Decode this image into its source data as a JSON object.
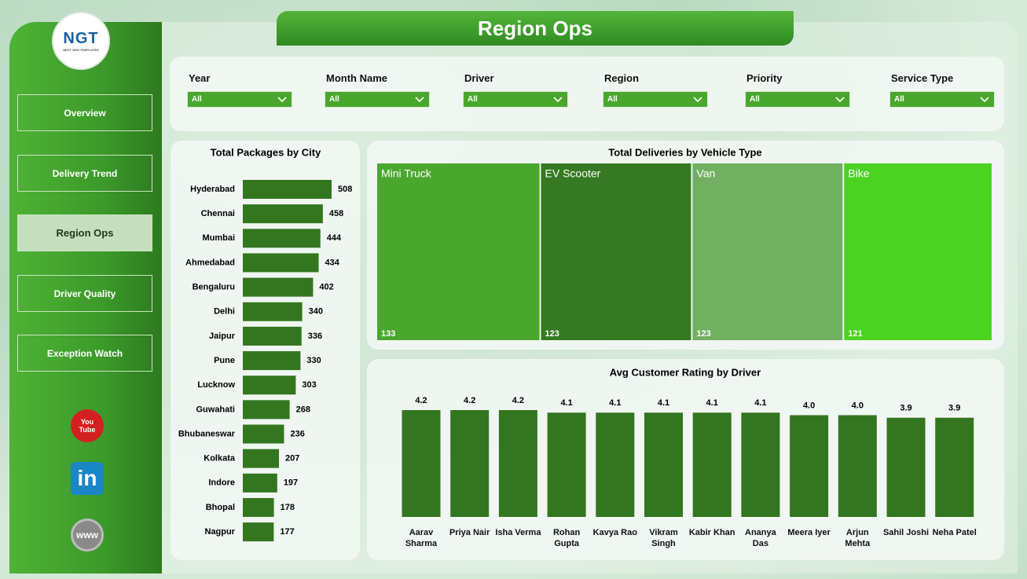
{
  "logo": {
    "name": "NGT",
    "tagline": "NEXT GEN TEMPLATES"
  },
  "nav": [
    "Overview",
    "Delivery Trend",
    "Region Ops",
    "Driver Quality",
    "Exception Watch"
  ],
  "social": [
    "You Tube",
    "in",
    "www"
  ],
  "title": "Region Ops",
  "filters": [
    {
      "label": "Year",
      "value": "All"
    },
    {
      "label": "Month Name",
      "value": "All"
    },
    {
      "label": "Driver",
      "value": "All"
    },
    {
      "label": "Region",
      "value": "All"
    },
    {
      "label": "Priority",
      "value": "All"
    },
    {
      "label": "Service Type",
      "value": "All"
    }
  ],
  "chart_data": [
    {
      "type": "hbar",
      "title": "Total Packages by City",
      "categories": [
        "Hyderabad",
        "Chennai",
        "Mumbai",
        "Ahmedabad",
        "Bengaluru",
        "Delhi",
        "Jaipur",
        "Pune",
        "Lucknow",
        "Guwahati",
        "Bhubaneswar",
        "Kolkata",
        "Indore",
        "Bhopal",
        "Nagpur"
      ],
      "values": [
        508,
        458,
        444,
        434,
        402,
        340,
        336,
        330,
        303,
        268,
        236,
        207,
        197,
        178,
        177
      ],
      "color": "#33761f"
    },
    {
      "type": "treemap",
      "title": "Total Deliveries by Vehicle Type",
      "categories": [
        "Mini Truck",
        "EV Scooter",
        "Van",
        "Bike"
      ],
      "values": [
        133,
        123,
        123,
        121
      ],
      "colors": [
        "#4aa72e",
        "#357a22",
        "#72b061",
        "#4cd322"
      ]
    },
    {
      "type": "bar",
      "title": "Avg Customer Rating by Driver",
      "categories": [
        "Aarav Sharma",
        "Priya Nair",
        "Isha Verma",
        "Rohan Gupta",
        "Kavya Rao",
        "Vikram Singh",
        "Kabir Khan",
        "Ananya Das",
        "Meera Iyer",
        "Arjun Mehta",
        "Sahil Joshi",
        "Neha Patel"
      ],
      "values": [
        4.2,
        4.2,
        4.2,
        4.1,
        4.1,
        4.1,
        4.1,
        4.1,
        4,
        4,
        3.9,
        3.9
      ],
      "value_labels": [
        "4.2",
        "4.2",
        "4.2",
        "4.1",
        "4.1",
        "4.1",
        "4.1",
        "4.1",
        "4.0",
        "4.0",
        "3.9",
        "3.9"
      ],
      "color": "#33761f"
    }
  ]
}
